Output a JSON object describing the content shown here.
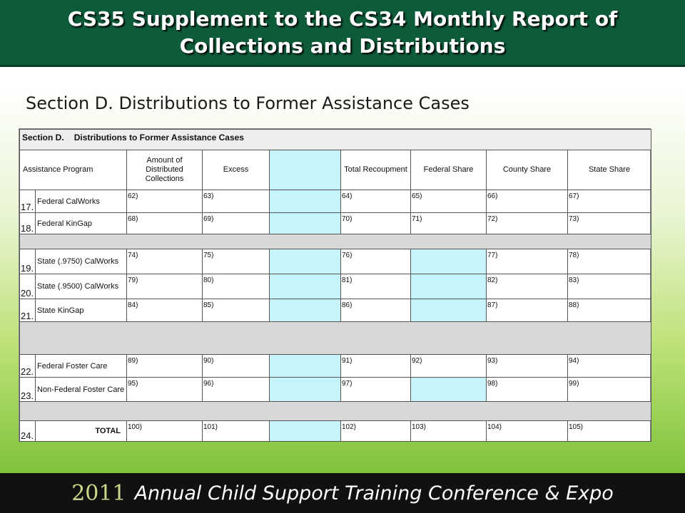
{
  "header": {
    "title_line1": "CS35 Supplement to the CS34 Monthly Report of",
    "title_line2": "Collections and Distributions"
  },
  "subtitle": "Section D.  Distributions to Former Assistance Cases",
  "form": {
    "section_label": "Section D.",
    "section_title": "Distributions to Former Assistance Cases",
    "columns": {
      "program": "Assistance Program",
      "amount_l1": "Amount of",
      "amount_l2": "Distributed",
      "amount_l3": "Collections",
      "excess": "Excess",
      "total_recoupment": "Total Recoupment",
      "federal_share": "Federal Share",
      "county_share": "County Share",
      "state_share": "State Share"
    },
    "rows": [
      {
        "num": "17.",
        "program": "Federal CalWorks",
        "amount": "62)",
        "excess": "63)",
        "recoup": "64)",
        "federal": "65)",
        "county": "66)",
        "state": "67)"
      },
      {
        "num": "18.",
        "program": "Federal KinGap",
        "amount": "68)",
        "excess": "69)",
        "recoup": "70)",
        "federal": "71)",
        "county": "72)",
        "state": "73)"
      },
      {
        "num": "19.",
        "program": "State (.9750) CalWorks",
        "amount": "74)",
        "excess": "75)",
        "recoup": "76)",
        "county": "77)",
        "state": "78)"
      },
      {
        "num": "20.",
        "program": "State (.9500) CalWorks",
        "amount": "79)",
        "excess": "80)",
        "recoup": "81)",
        "county": "82)",
        "state": "83)"
      },
      {
        "num": "21.",
        "program": "State KinGap",
        "amount": "84)",
        "excess": "85)",
        "recoup": "86)",
        "county": "87)",
        "state": "88)"
      },
      {
        "num": "22.",
        "program": "Federal Foster Care",
        "amount": "89)",
        "excess": "90)",
        "recoup": "91)",
        "federal": "92)",
        "county": "93)",
        "state": "94)"
      },
      {
        "num": "23.",
        "program": "Non-Federal Foster Care",
        "amount": "95)",
        "excess": "96)",
        "recoup": "97)",
        "county": "98)",
        "state": "99)"
      },
      {
        "num": "24.",
        "program": "TOTAL",
        "amount": "100)",
        "excess": "101)",
        "recoup": "102)",
        "federal": "103)",
        "county": "104)",
        "state": "105)"
      }
    ],
    "colors": {
      "shaded_cell": "#c6f4fb",
      "spacer_row": "#d8d8d8"
    }
  },
  "footer": {
    "year": "2011",
    "conference": "Annual Child Support Training Conference & Expo"
  }
}
